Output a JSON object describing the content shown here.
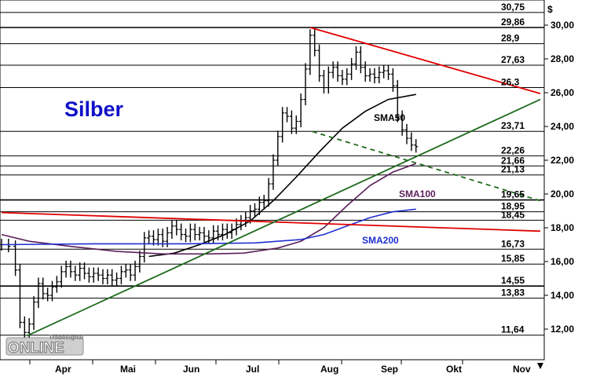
{
  "chart_data": {
    "type": "line",
    "title": "Silber",
    "ylabel": "$",
    "ylim": [
      11.0,
      31.0
    ],
    "xlim_days": [
      0,
      234
    ],
    "y_ticks": [
      "12,00",
      "14,00",
      "16,00",
      "18,00",
      "20,00",
      "22,00",
      "24,00",
      "26,00",
      "28,00",
      "30,00"
    ],
    "y_tick_values": [
      12,
      14,
      16,
      18,
      20,
      22,
      24,
      26,
      28,
      30
    ],
    "x_ticks": [
      "Apr",
      "Mai",
      "Jun",
      "Jul",
      "Aug",
      "Sep",
      "Okt",
      "Nov"
    ],
    "levels": [
      {
        "label": "30,75",
        "value": 30.75
      },
      {
        "label": "29,86",
        "value": 29.86
      },
      {
        "label": "28,9",
        "value": 28.9
      },
      {
        "label": "27,63",
        "value": 27.63
      },
      {
        "label": "26,3",
        "value": 26.3
      },
      {
        "label": "23,71",
        "value": 23.71
      },
      {
        "label": "22,26",
        "value": 22.26
      },
      {
        "label": "21,66",
        "value": 21.66
      },
      {
        "label": "21,13",
        "value": 21.13
      },
      {
        "label": "19,65",
        "value": 19.65
      },
      {
        "label": "18,95",
        "value": 18.95
      },
      {
        "label": "18,45",
        "value": 18.45
      },
      {
        "label": "16,73",
        "value": 16.73
      },
      {
        "label": "15,85",
        "value": 15.85
      },
      {
        "label": "14,55",
        "value": 14.55
      },
      {
        "label": "13,83",
        "value": 13.83
      },
      {
        "label": "11,64",
        "value": 11.64
      }
    ],
    "series": [
      {
        "name": "SMA50",
        "color": "#000000",
        "x": [
          64,
          75,
          86,
          97,
          108,
          118,
          128,
          138,
          148,
          158,
          168,
          180
        ],
        "y": [
          16.3,
          16.5,
          17.0,
          17.6,
          18.4,
          19.6,
          21.0,
          22.5,
          23.9,
          24.9,
          25.6,
          25.9
        ]
      },
      {
        "name": "SMA100",
        "color": "#5a1f5a",
        "x": [
          0,
          12,
          30,
          50,
          70,
          90,
          105,
          120,
          130,
          140,
          150,
          160,
          170,
          180
        ],
        "y": [
          17.6,
          17.2,
          16.9,
          16.6,
          16.45,
          16.45,
          16.5,
          16.8,
          17.2,
          18.0,
          19.3,
          20.5,
          21.3,
          21.8
        ]
      },
      {
        "name": "SMA200",
        "color": "#1f2fd0",
        "x": [
          0,
          40,
          80,
          110,
          130,
          140,
          150,
          160,
          170,
          180
        ],
        "y": [
          17.0,
          17.05,
          17.05,
          17.1,
          17.3,
          17.6,
          18.1,
          18.6,
          18.95,
          19.1
        ]
      }
    ],
    "trendlines": [
      {
        "color": "#e00000",
        "points": [
          [
            134,
            29.86
          ],
          [
            234,
            25.95
          ]
        ]
      },
      {
        "color": "#e00000",
        "points": [
          [
            0,
            18.9
          ],
          [
            234,
            17.8
          ]
        ]
      },
      {
        "color": "#1c6b1c",
        "points": [
          [
            11,
            11.6
          ],
          [
            234,
            25.6
          ]
        ]
      },
      {
        "color": "#1c6b1c",
        "dashed": true,
        "points": [
          [
            135,
            23.7
          ],
          [
            234,
            19.6
          ]
        ]
      }
    ],
    "ohlc_close_path": [
      [
        0,
        17.0
      ],
      [
        3,
        16.9
      ],
      [
        6,
        15.5
      ],
      [
        8,
        12.4
      ],
      [
        10,
        11.8
      ],
      [
        12,
        12.3
      ],
      [
        14,
        13.6
      ],
      [
        16,
        14.7
      ],
      [
        18,
        14.1
      ],
      [
        20,
        14.0
      ],
      [
        22,
        14.5
      ],
      [
        24,
        14.8
      ],
      [
        26,
        15.4
      ],
      [
        28,
        15.7
      ],
      [
        30,
        15.4
      ],
      [
        32,
        15.2
      ],
      [
        34,
        15.6
      ],
      [
        36,
        15.3
      ],
      [
        38,
        15.1
      ],
      [
        40,
        15.3
      ],
      [
        42,
        15.2
      ],
      [
        44,
        15.0
      ],
      [
        46,
        15.2
      ],
      [
        48,
        14.9
      ],
      [
        50,
        15.0
      ],
      [
        52,
        15.4
      ],
      [
        54,
        15.5
      ],
      [
        56,
        15.2
      ],
      [
        58,
        15.7
      ],
      [
        60,
        16.3
      ],
      [
        62,
        17.4
      ],
      [
        64,
        17.5
      ],
      [
        66,
        17.3
      ],
      [
        68,
        17.6
      ],
      [
        70,
        17.2
      ],
      [
        72,
        17.7
      ],
      [
        74,
        18.1
      ],
      [
        76,
        17.9
      ],
      [
        78,
        17.6
      ],
      [
        80,
        17.5
      ],
      [
        82,
        17.9
      ],
      [
        84,
        17.6
      ],
      [
        86,
        17.7
      ],
      [
        88,
        17.5
      ],
      [
        90,
        17.4
      ],
      [
        92,
        17.8
      ],
      [
        94,
        17.6
      ],
      [
        96,
        17.9
      ],
      [
        98,
        17.7
      ],
      [
        100,
        17.9
      ],
      [
        102,
        18.2
      ],
      [
        104,
        18.4
      ],
      [
        106,
        18.6
      ],
      [
        108,
        19.0
      ],
      [
        110,
        19.1
      ],
      [
        112,
        19.5
      ],
      [
        114,
        19.6
      ],
      [
        116,
        20.6
      ],
      [
        118,
        22.0
      ],
      [
        120,
        23.4
      ],
      [
        122,
        24.8
      ],
      [
        124,
        24.6
      ],
      [
        126,
        23.9
      ],
      [
        128,
        24.3
      ],
      [
        130,
        25.6
      ],
      [
        132,
        27.4
      ],
      [
        134,
        29.4
      ],
      [
        136,
        28.5
      ],
      [
        138,
        27.0
      ],
      [
        140,
        26.3
      ],
      [
        142,
        27.2
      ],
      [
        144,
        27.5
      ],
      [
        146,
        27.0
      ],
      [
        148,
        26.8
      ],
      [
        150,
        27.1
      ],
      [
        152,
        27.7
      ],
      [
        154,
        28.4
      ],
      [
        156,
        27.5
      ],
      [
        158,
        27.0
      ],
      [
        160,
        27.1
      ],
      [
        162,
        26.9
      ],
      [
        164,
        27.2
      ],
      [
        166,
        27.3
      ],
      [
        168,
        27.1
      ],
      [
        170,
        26.4
      ],
      [
        172,
        24.6
      ],
      [
        174,
        23.8
      ],
      [
        176,
        23.3
      ],
      [
        178,
        22.9
      ],
      [
        180,
        22.8
      ]
    ]
  }
}
